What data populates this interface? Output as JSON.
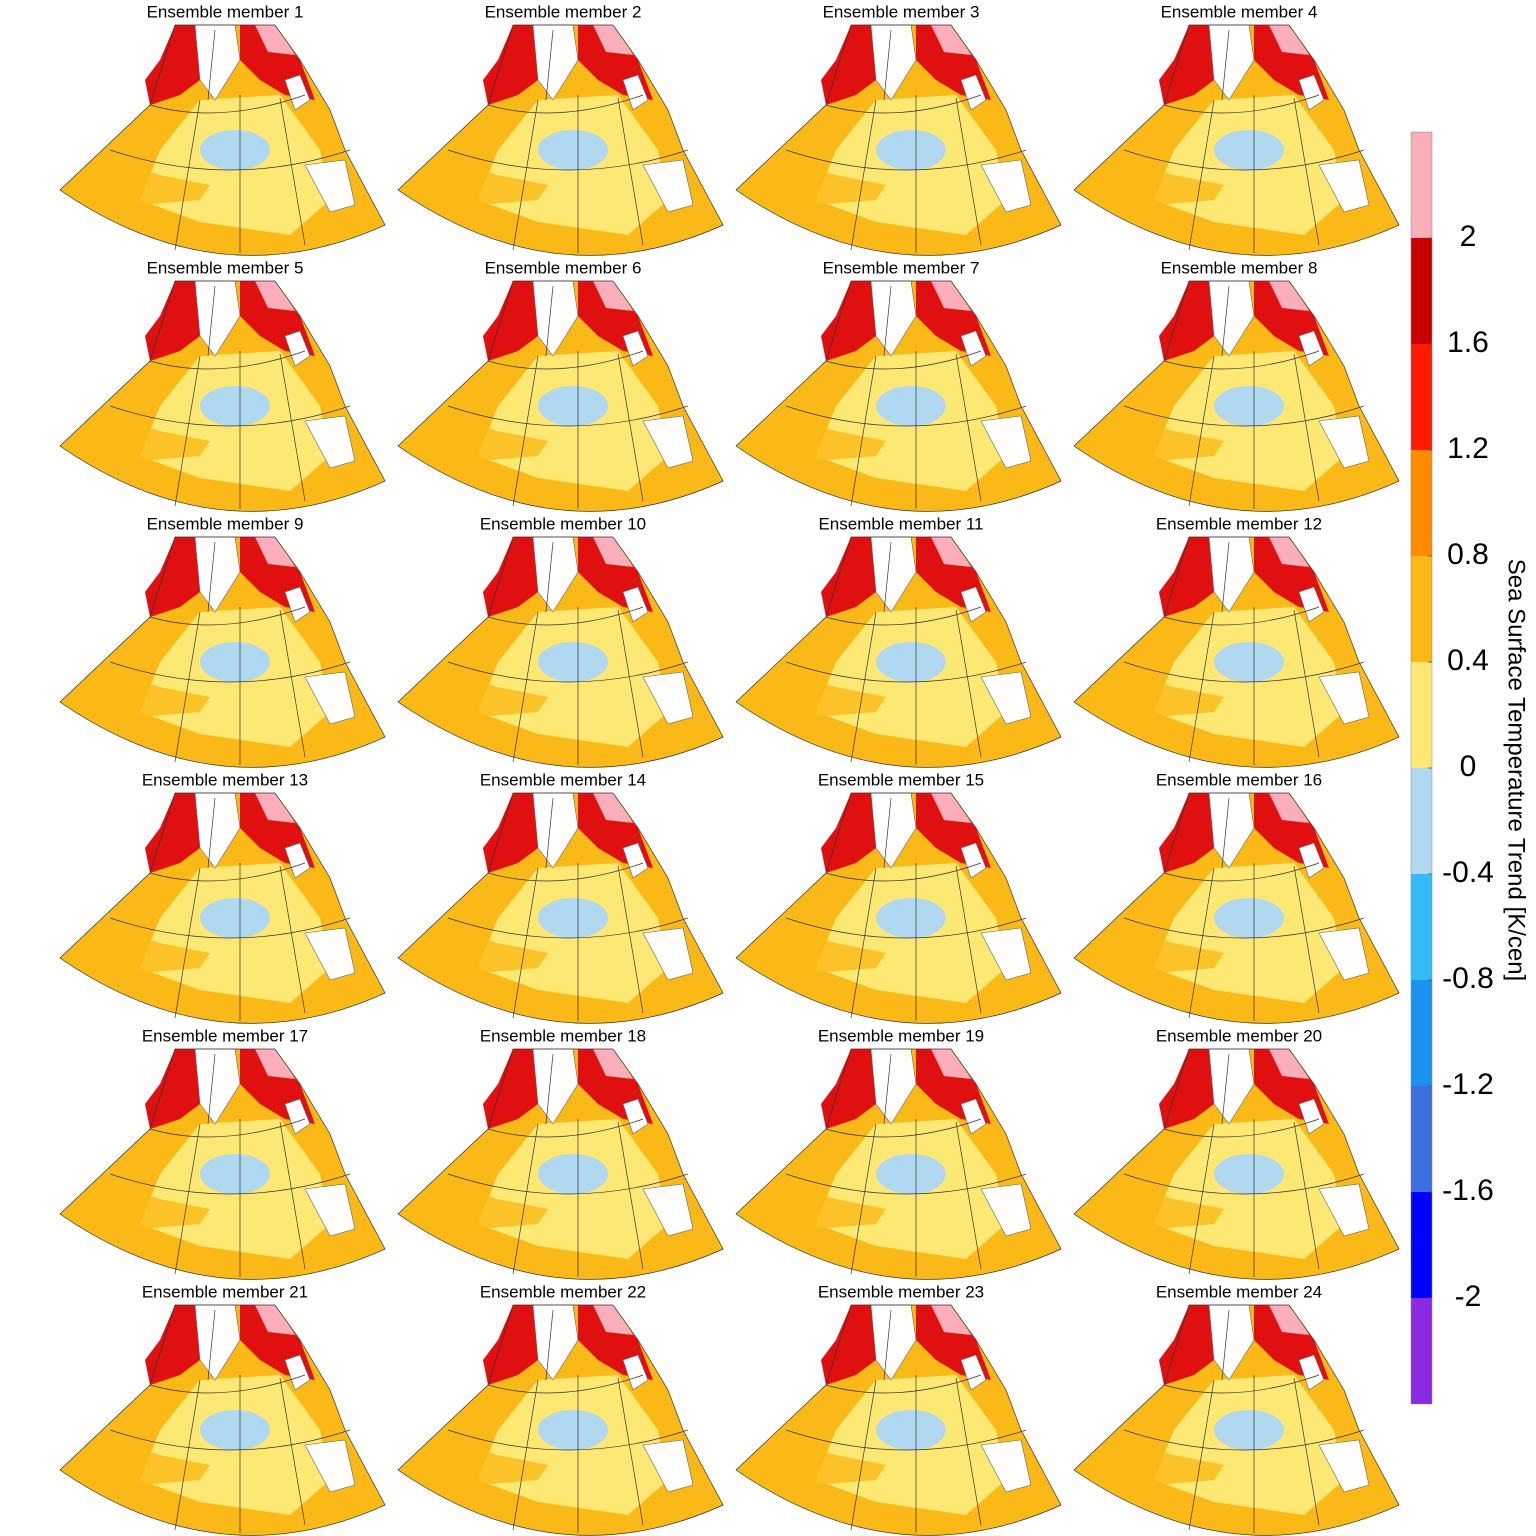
{
  "panels": [
    {
      "title": "Ensemble member 1"
    },
    {
      "title": "Ensemble member 2"
    },
    {
      "title": "Ensemble member 3"
    },
    {
      "title": "Ensemble member 4"
    },
    {
      "title": "Ensemble member 5"
    },
    {
      "title": "Ensemble member 6"
    },
    {
      "title": "Ensemble member 7"
    },
    {
      "title": "Ensemble member 8"
    },
    {
      "title": "Ensemble member 9"
    },
    {
      "title": "Ensemble member 10"
    },
    {
      "title": "Ensemble member 11"
    },
    {
      "title": "Ensemble member 12"
    },
    {
      "title": "Ensemble member 13"
    },
    {
      "title": "Ensemble member 14"
    },
    {
      "title": "Ensemble member 15"
    },
    {
      "title": "Ensemble member 16"
    },
    {
      "title": "Ensemble member 17"
    },
    {
      "title": "Ensemble member 18"
    },
    {
      "title": "Ensemble member 19"
    },
    {
      "title": "Ensemble member 20"
    },
    {
      "title": "Ensemble member 21"
    },
    {
      "title": "Ensemble member 22"
    },
    {
      "title": "Ensemble member 23"
    },
    {
      "title": "Ensemble member 24"
    }
  ],
  "colorbar": {
    "label": "Sea Surface Temperature Trend [K/cen]",
    "ticks": [
      2,
      1.6,
      1.2,
      0.8,
      0.4,
      0,
      -0.4,
      -0.8,
      -1.2,
      -1.6,
      -2
    ],
    "colors": [
      "#f9aeb9",
      "#c80000",
      "#ff1a00",
      "#ff8c00",
      "#fbb917",
      "#fde874",
      "#b0d8f0",
      "#33bbf5",
      "#1a93f0",
      "#3d6ee0",
      "#0000ff",
      "#8a2be2"
    ]
  }
}
